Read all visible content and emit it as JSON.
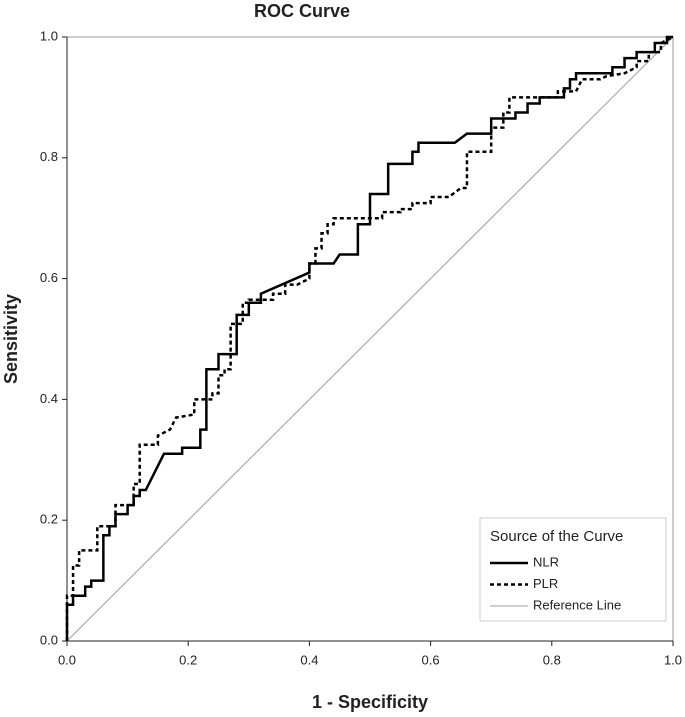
{
  "chart_data": {
    "type": "line",
    "title": "ROC Curve",
    "xlabel": "1 - Specificity",
    "ylabel": "Sensitivity",
    "xlim": [
      0,
      1
    ],
    "ylim": [
      0,
      1
    ],
    "xticks": [
      {
        "value": 0,
        "label": "0.0"
      },
      0.2,
      0.4,
      0.6,
      0.8,
      {
        "value": 1,
        "label": "1.0"
      }
    ],
    "yticks": [
      {
        "value": 0,
        "label": "0.0"
      },
      0.2,
      0.4,
      0.6,
      0.8,
      {
        "value": 1,
        "label": "1.0"
      }
    ],
    "legend_title": "Source of the Curve",
    "legend": "lower right",
    "series": [
      {
        "name": "NLR",
        "color": "#000000",
        "dash": "solid",
        "x": [
          0,
          0,
          0.01,
          0.01,
          0.03,
          0.03,
          0.04,
          0.04,
          0.06,
          0.06,
          0.07,
          0.07,
          0.08,
          0.08,
          0.1,
          0.1,
          0.11,
          0.11,
          0.12,
          0.12,
          0.13,
          0.16,
          0.19,
          0.19,
          0.22,
          0.22,
          0.23,
          0.23,
          0.25,
          0.25,
          0.28,
          0.28,
          0.3,
          0.3,
          0.32,
          0.32,
          0.4,
          0.4,
          0.44,
          0.45,
          0.48,
          0.48,
          0.5,
          0.5,
          0.53,
          0.53,
          0.57,
          0.57,
          0.58,
          0.58,
          0.64,
          0.66,
          0.7,
          0.7,
          0.74,
          0.74,
          0.76,
          0.76,
          0.78,
          0.78,
          0.82,
          0.82,
          0.83,
          0.83,
          0.84,
          0.84,
          0.9,
          0.9,
          0.92,
          0.92,
          0.94,
          0.94,
          0.97,
          0.97,
          0.99,
          0.99,
          1
        ],
        "values": [
          0,
          0.06,
          0.06,
          0.075,
          0.075,
          0.09,
          0.09,
          0.1,
          0.1,
          0.175,
          0.175,
          0.19,
          0.19,
          0.21,
          0.21,
          0.225,
          0.225,
          0.24,
          0.24,
          0.25,
          0.25,
          0.31,
          0.31,
          0.32,
          0.32,
          0.35,
          0.35,
          0.45,
          0.45,
          0.475,
          0.475,
          0.54,
          0.54,
          0.56,
          0.56,
          0.575,
          0.61,
          0.625,
          0.625,
          0.64,
          0.64,
          0.69,
          0.69,
          0.74,
          0.74,
          0.79,
          0.79,
          0.81,
          0.81,
          0.825,
          0.825,
          0.84,
          0.84,
          0.865,
          0.865,
          0.875,
          0.875,
          0.89,
          0.89,
          0.9,
          0.9,
          0.915,
          0.915,
          0.93,
          0.93,
          0.94,
          0.94,
          0.95,
          0.95,
          0.965,
          0.965,
          0.975,
          0.975,
          0.99,
          0.99,
          1,
          1
        ]
      },
      {
        "name": "PLR",
        "color": "#000000",
        "dash": "dotted",
        "x": [
          0,
          0,
          0.01,
          0.01,
          0.02,
          0.02,
          0.05,
          0.05,
          0.08,
          0.08,
          0.11,
          0.11,
          0.12,
          0.12,
          0.15,
          0.15,
          0.17,
          0.18,
          0.21,
          0.21,
          0.24,
          0.24,
          0.25,
          0.25,
          0.26,
          0.26,
          0.27,
          0.27,
          0.29,
          0.29,
          0.3,
          0.3,
          0.34,
          0.34,
          0.36,
          0.36,
          0.38,
          0.4,
          0.4,
          0.41,
          0.41,
          0.42,
          0.42,
          0.43,
          0.43,
          0.44,
          0.44,
          0.52,
          0.52,
          0.55,
          0.55,
          0.57,
          0.57,
          0.6,
          0.6,
          0.63,
          0.65,
          0.66,
          0.66,
          0.7,
          0.7,
          0.72,
          0.72,
          0.73,
          0.73,
          0.81,
          0.81,
          0.84,
          0.85,
          0.88,
          0.89,
          0.92,
          0.94,
          0.94,
          0.96,
          0.96,
          0.98,
          0.98,
          1
        ],
        "values": [
          0,
          0.075,
          0.075,
          0.125,
          0.125,
          0.15,
          0.15,
          0.19,
          0.19,
          0.225,
          0.225,
          0.26,
          0.26,
          0.325,
          0.325,
          0.34,
          0.35,
          0.37,
          0.375,
          0.4,
          0.4,
          0.41,
          0.41,
          0.44,
          0.44,
          0.45,
          0.45,
          0.525,
          0.525,
          0.56,
          0.56,
          0.565,
          0.565,
          0.575,
          0.575,
          0.59,
          0.59,
          0.6,
          0.625,
          0.625,
          0.65,
          0.65,
          0.675,
          0.675,
          0.69,
          0.69,
          0.7,
          0.7,
          0.71,
          0.71,
          0.715,
          0.715,
          0.725,
          0.725,
          0.735,
          0.735,
          0.75,
          0.75,
          0.81,
          0.81,
          0.85,
          0.85,
          0.875,
          0.875,
          0.9,
          0.9,
          0.91,
          0.91,
          0.93,
          0.93,
          0.935,
          0.94,
          0.95,
          0.96,
          0.96,
          0.975,
          0.975,
          0.99,
          1
        ]
      },
      {
        "name": "Reference Line",
        "color": "#b0b0b0",
        "dash": "solid",
        "x": [
          0,
          1
        ],
        "values": [
          0,
          1
        ]
      }
    ]
  }
}
